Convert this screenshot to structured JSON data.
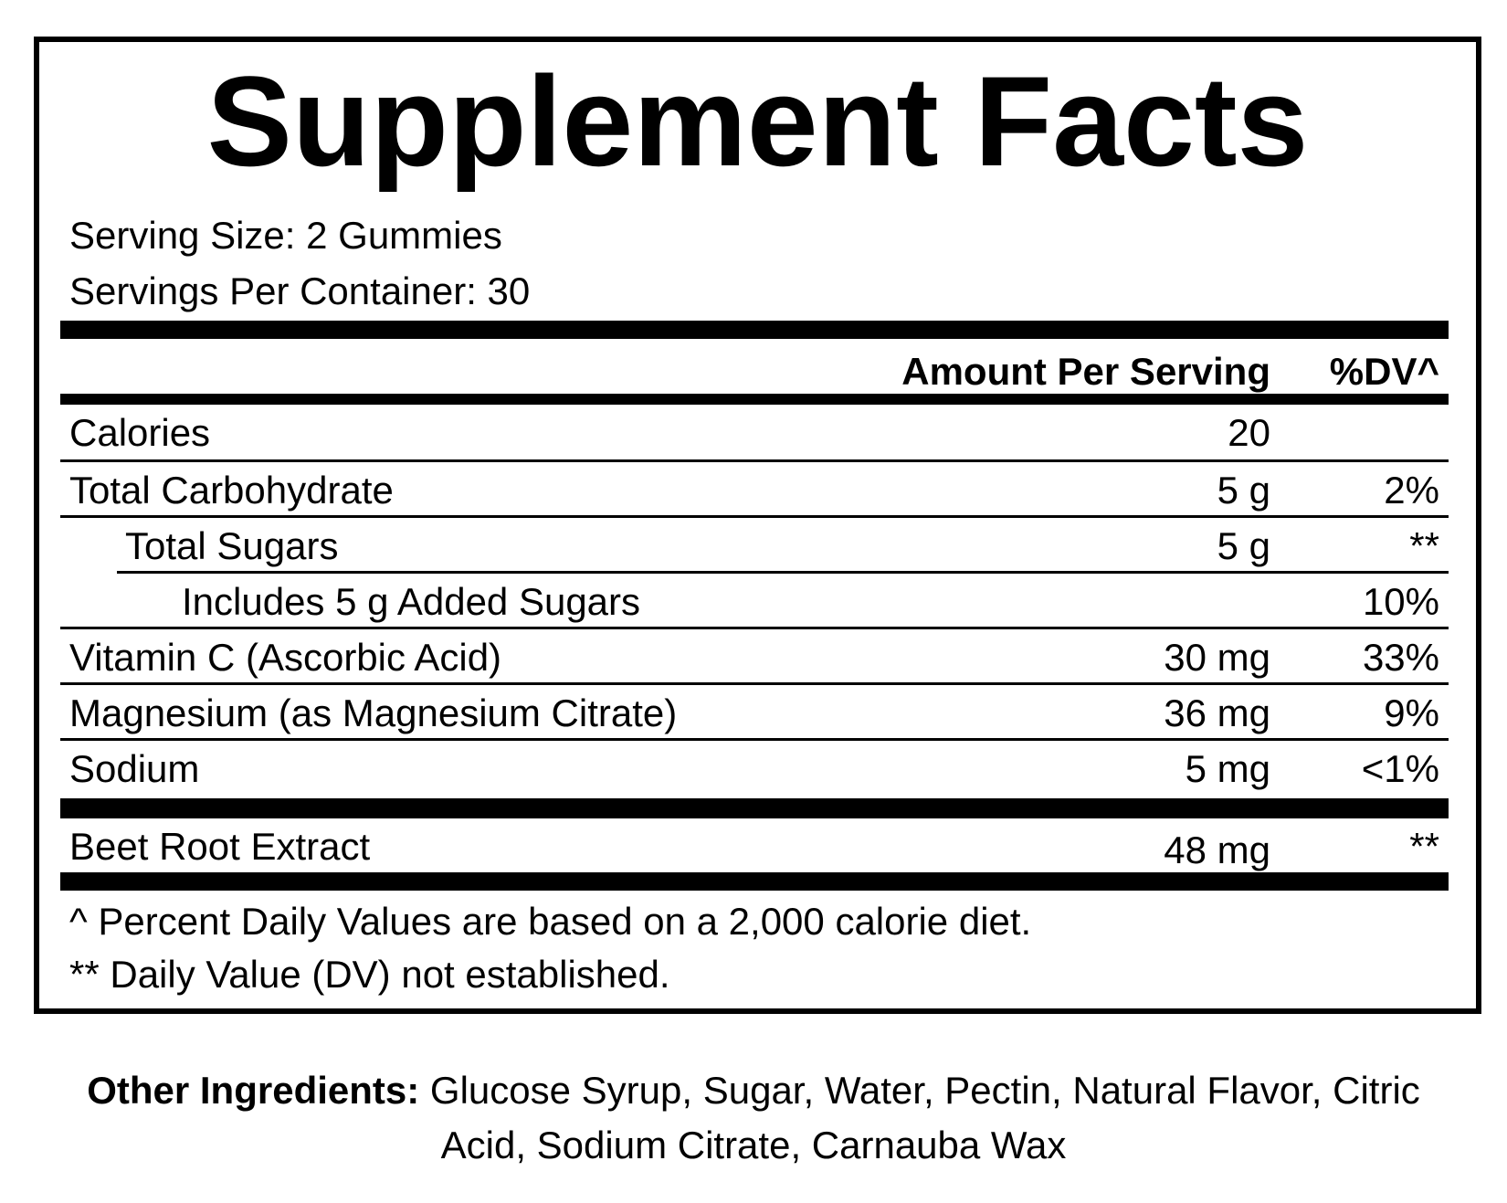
{
  "title": "Supplement Facts",
  "serving_size": "Serving Size: 2 Gummies",
  "servings_per_container": "Servings Per Container: 30",
  "table": {
    "header": {
      "amount": "Amount Per Serving",
      "dv": "%DV^"
    },
    "rows": [
      {
        "name": "Calories",
        "amount": "20"
      },
      {
        "name": "Total Carbohydrate",
        "amount": "5 g",
        "dv": "2%"
      },
      {
        "name": "Total Sugars",
        "amount": "5 g",
        "dv": "**"
      },
      {
        "name": "Includes 5 g Added Sugars",
        "dv": "10%"
      },
      {
        "name": "Vitamin C (Ascorbic Acid)",
        "amount": "30 mg",
        "dv": "33%"
      },
      {
        "name": "Magnesium (as Magnesium Citrate)",
        "amount": "36 mg",
        "dv": "9%"
      },
      {
        "name": "Sodium",
        "amount": "5 mg",
        "dv": "<1%"
      },
      {
        "name": "Beet Root Extract",
        "amount": "48 mg",
        "dv": "**"
      }
    ]
  },
  "footnotes": [
    "^ Percent Daily Values are based on a 2,000 calorie diet.",
    "** Daily Value (DV) not established."
  ],
  "other_ingredients": {
    "label": "Other Ingredients:",
    "text": "Glucose Syrup, Sugar, Water, Pectin, Natural Flavor, Citric Acid, Sodium Citrate, Carnauba Wax"
  }
}
